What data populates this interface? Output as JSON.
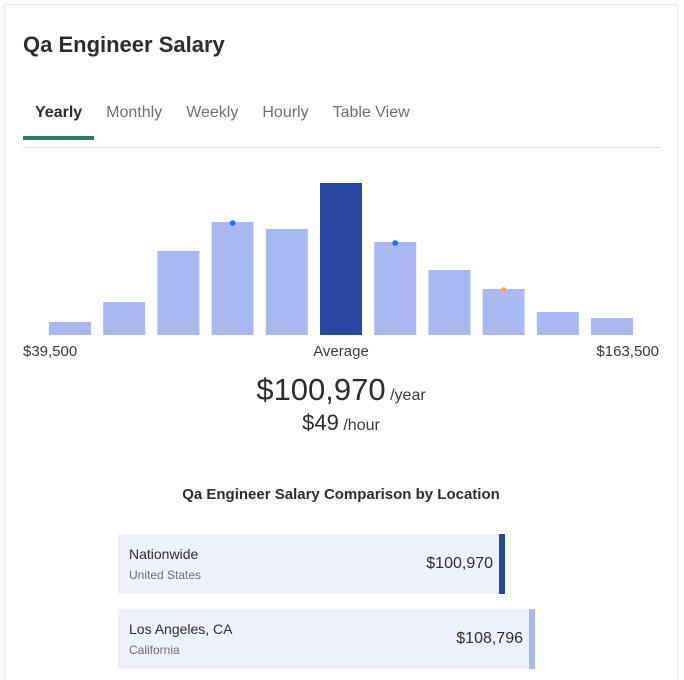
{
  "header": {
    "title": "Qa Engineer Salary"
  },
  "tabs": {
    "items": [
      "Yearly",
      "Monthly",
      "Weekly",
      "Hourly",
      "Table View"
    ],
    "active": 0
  },
  "distribution": {
    "values": [
      13,
      33,
      84,
      113,
      106,
      152,
      93,
      65,
      46,
      23,
      17
    ],
    "highlight": 5,
    "min_label": "$39,500",
    "center_label": "Average",
    "max_label": "$163,500"
  },
  "average": {
    "yearly": "$100,970",
    "yearly_unit": "/year",
    "hourly": "$49",
    "hourly_unit": "/hour"
  },
  "comparison": {
    "title": "Qa Engineer Salary Comparison by Location",
    "rows": [
      {
        "name": "Nationwide",
        "region": "United States",
        "value": 100970,
        "label": "$100,970"
      },
      {
        "name": "Los Angeles, CA",
        "region": "California",
        "value": 108796,
        "label": "$108,796"
      }
    ]
  }
}
